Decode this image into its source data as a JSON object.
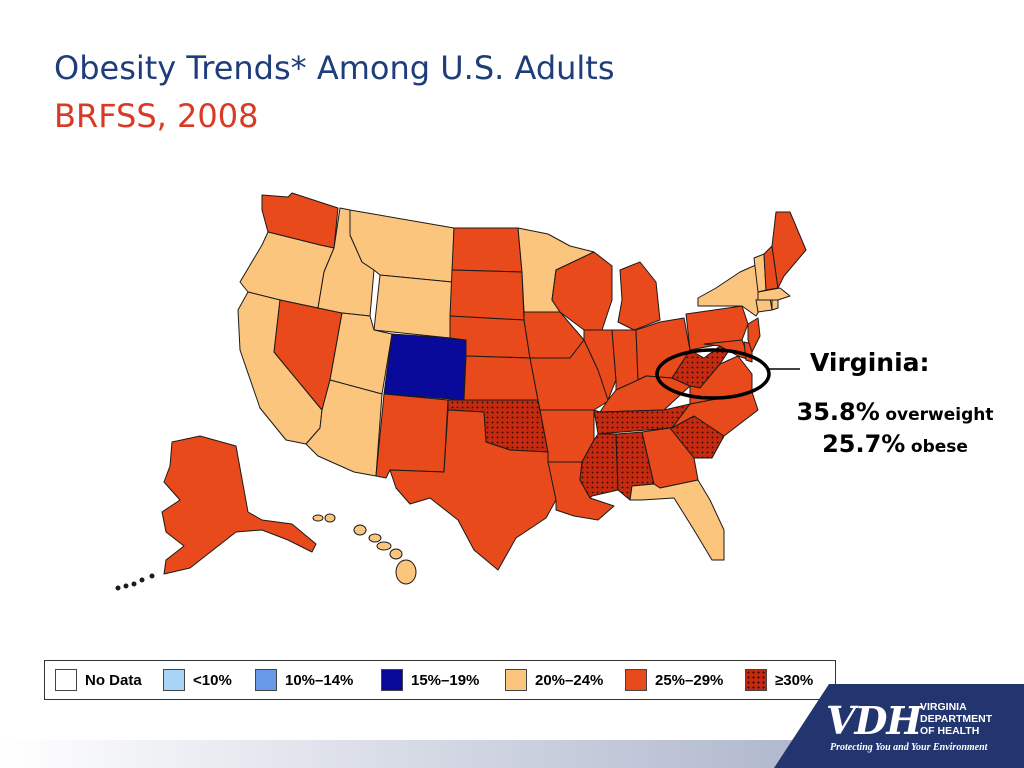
{
  "header": {
    "title": "Obesity Trends* Among U.S. Adults",
    "subtitle": "BRFSS, 2008"
  },
  "map_data": {
    "highlight_state": "Virginia",
    "categories": {
      "none": "No Data",
      "lt10": "<10%",
      "c10_14": "10%–14%",
      "c15_19": "15%–19%",
      "c20_24": "20%–24%",
      "c25_29": "25%–29%",
      "ge30": "≥30%"
    },
    "colors": {
      "none": "#ffffff",
      "lt10": "#a8d4f7",
      "c10_14": "#6699e8",
      "c15_19": "#0a0a9a",
      "c20_24": "#fcc57d",
      "c25_29": "#e84a1c",
      "ge30": "#c42a10"
    },
    "state_category": {
      "WA": "c25_29",
      "OR": "c20_24",
      "CA": "c20_24",
      "ID": "c20_24",
      "NV": "c25_29",
      "MT": "c20_24",
      "WY": "c20_24",
      "UT": "c20_24",
      "AZ": "c20_24",
      "CO": "c15_19",
      "NM": "c25_29",
      "ND": "c25_29",
      "SD": "c25_29",
      "NE": "c25_29",
      "KS": "c25_29",
      "OK": "ge30",
      "TX": "c25_29",
      "MN": "c20_24",
      "IA": "c25_29",
      "MO": "c25_29",
      "AR": "c25_29",
      "LA": "c25_29",
      "WI": "c25_29",
      "IL": "c25_29",
      "MI": "c25_29",
      "IN": "c25_29",
      "OH": "c25_29",
      "KY": "c25_29",
      "TN": "ge30",
      "MS": "ge30",
      "AL": "ge30",
      "GA": "c25_29",
      "FL": "c20_24",
      "SC": "ge30",
      "NC": "c25_29",
      "VA": "c25_29",
      "WV": "ge30",
      "PA": "c25_29",
      "NY": "c20_24",
      "VT": "c20_24",
      "NH": "c25_29",
      "ME": "c25_29",
      "MA": "c20_24",
      "CT": "c20_24",
      "RI": "c20_24",
      "NJ": "c25_29",
      "DE": "c25_29",
      "MD": "c25_29",
      "AK": "c25_29",
      "HI": "c20_24"
    }
  },
  "callout": {
    "title": "Virginia:",
    "overweight_value": "35.8%",
    "overweight_label": "overweight",
    "obese_value": "25.7%",
    "obese_label": "obese"
  },
  "legend": {
    "items": [
      {
        "label": "No Data",
        "key": "none"
      },
      {
        "label": "<10%",
        "key": "lt10"
      },
      {
        "label": "10%–14%",
        "key": "c10_14"
      },
      {
        "label": "15%–19%",
        "key": "c15_19"
      },
      {
        "label": "20%–24%",
        "key": "c20_24"
      },
      {
        "label": "25%–29%",
        "key": "c25_29"
      },
      {
        "label": "≥30%",
        "key": "ge30"
      }
    ]
  },
  "logo": {
    "mark": "VDH",
    "name_lines": [
      "VIRGINIA",
      "DEPARTMENT",
      "OF HEALTH"
    ],
    "tagline": "Protecting You and Your Environment"
  }
}
